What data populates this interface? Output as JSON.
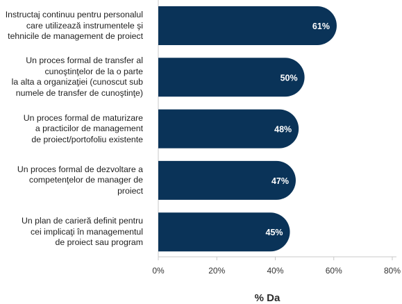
{
  "chart_data": {
    "type": "bar",
    "orientation": "horizontal",
    "categories": [
      "Instructaj continuu pentru personalul\ncare utilizează instrumentele şi\ntehnicile de management de proiect",
      "Un proces formal de transfer al\ncunoştinţelor de la o parte\nla alta a organizaţiei (cunoscut sub\nnumele de transfer de cunoştinţe)",
      "Un proces formal de maturizare\na practicilor de management\nde proiect/portofoliu existente",
      "Un proces formal de dezvoltare a\ncompetenţelor de manager de proiect",
      "Un plan de carieră definit pentru\ncei implicaţi în managementul\nde proiect sau program"
    ],
    "values": [
      61,
      50,
      48,
      47,
      45
    ],
    "value_labels": [
      "61%",
      "50%",
      "48%",
      "47%",
      "45%"
    ],
    "xlim": [
      0,
      80
    ],
    "x_ticks": [
      "0%",
      "20%",
      "40%",
      "60%",
      "80%"
    ],
    "x_tick_values": [
      0,
      20,
      40,
      60,
      80
    ],
    "xlabel": "% Da",
    "grid": false,
    "bar_color": "#0a3358"
  }
}
